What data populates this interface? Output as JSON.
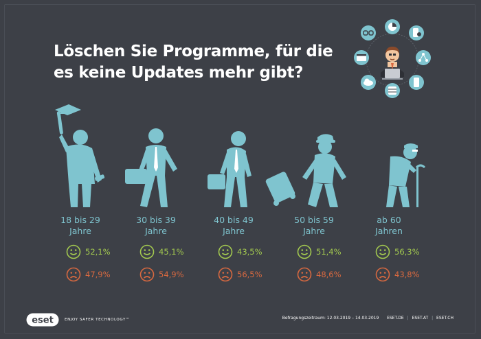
{
  "title_lines": [
    "Löschen Sie Programme, für die",
    "es keine Updates mehr gibt?"
  ],
  "brand": {
    "logo_text": "eset",
    "tagline": "ENJOY SAFER TECHNOLOGY™"
  },
  "footer": {
    "period": "Befragungszeitraum: 12.03.2019 – 14.03.2019",
    "sites": [
      "ESET.DE",
      "ESET.AT",
      "ESET.CH"
    ]
  },
  "colors": {
    "background": "#3d4047",
    "figure": "#7fc4cf",
    "positive": "#a3c94f",
    "negative": "#d96940",
    "title": "#ffffff"
  },
  "icons": {
    "positive": "smiley-icon",
    "negative": "frown-icon",
    "hub": [
      "link-icon",
      "pie-chart-icon",
      "mobile-settings-icon",
      "browser-icon",
      "network-icon",
      "cloud-icon",
      "database-icon",
      "smartphone-icon"
    ]
  },
  "chart_data": {
    "type": "table",
    "categories": [
      [
        "18 bis 29",
        "Jahre"
      ],
      [
        "30 bis 39",
        "Jahre"
      ],
      [
        "40 bis 49",
        "Jahre"
      ],
      [
        "50 bis 59",
        "Jahre"
      ],
      [
        "ab 60",
        "Jahren"
      ]
    ],
    "series": [
      {
        "icon": "smiley-icon",
        "values": [
          52.1,
          45.1,
          43.5,
          51.4,
          56.3
        ],
        "labels": [
          "52,1%",
          "45,1%",
          "43,5%",
          "51,4%",
          "56,3%"
        ]
      },
      {
        "icon": "frown-icon",
        "values": [
          47.9,
          54.9,
          56.5,
          48.6,
          43.8
        ],
        "labels": [
          "47,9%",
          "54,9%",
          "56,5%",
          "48,6%",
          "43,8%"
        ]
      }
    ]
  }
}
